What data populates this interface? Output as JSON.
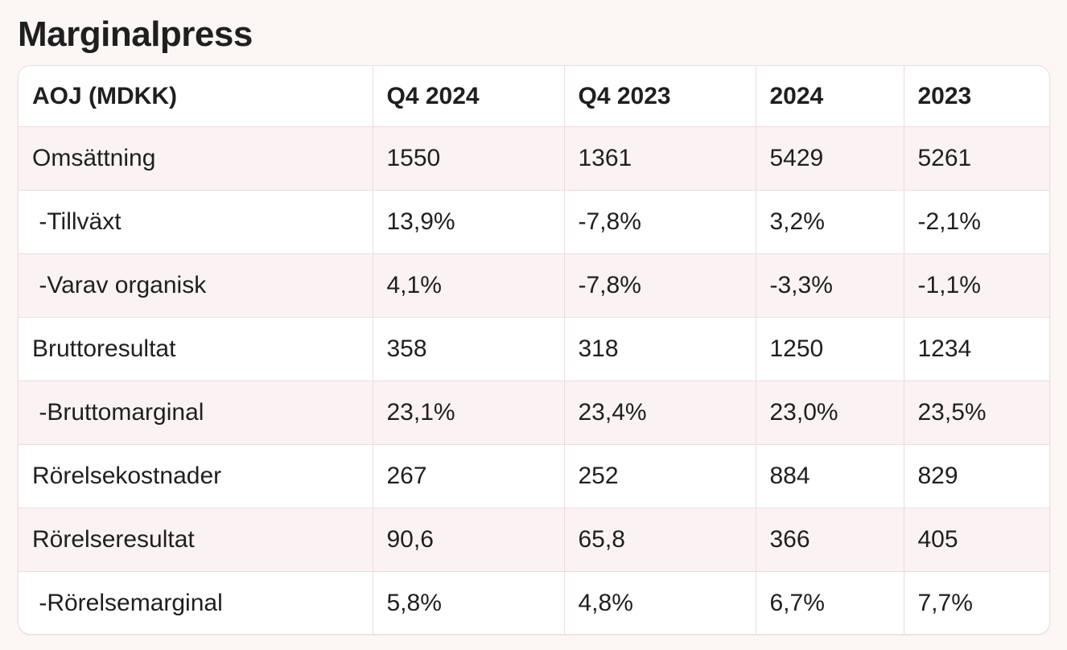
{
  "title": "Marginalpress",
  "table": {
    "header": [
      "AOJ (MDKK)",
      "Q4 2024",
      "Q4 2023",
      "2024",
      "2023"
    ],
    "rows": [
      [
        "Omsättning",
        "1550",
        "1361",
        "5429",
        "5261"
      ],
      [
        " -Tillväxt",
        "13,9%",
        "-7,8%",
        "3,2%",
        "-2,1%"
      ],
      [
        " -Varav organisk",
        "4,1%",
        "-7,8%",
        "-3,3%",
        "-1,1%"
      ],
      [
        "Bruttoresultat",
        "358",
        "318",
        "1250",
        "1234"
      ],
      [
        " -Bruttomarginal",
        "23,1%",
        "23,4%",
        "23,0%",
        "23,5%"
      ],
      [
        "Rörelsekostnader",
        "267",
        "252",
        "884",
        "829"
      ],
      [
        "Rörelseresultat",
        "90,6",
        "65,8",
        "366",
        "405"
      ],
      [
        " -Rörelsemarginal",
        "5,8%",
        "4,8%",
        "6,7%",
        "7,7%"
      ]
    ]
  }
}
